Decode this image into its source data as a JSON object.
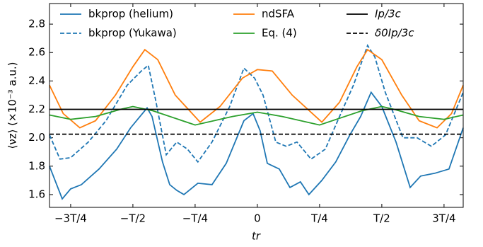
{
  "chart_data": {
    "type": "line",
    "xlabel": "tr",
    "ylabel": "⟨νz⟩ (×10⁻³ a.u.)",
    "xlim": [
      -0.835,
      0.827
    ],
    "ylim": [
      1.51,
      2.945
    ],
    "xticks": [
      {
        "value": -0.75,
        "label": "−3T/4"
      },
      {
        "value": -0.5,
        "label": "−T/2"
      },
      {
        "value": -0.25,
        "label": "−T/4"
      },
      0,
      {
        "value": 0.25,
        "label": "T/4"
      },
      {
        "value": 0.5,
        "label": "T/2"
      },
      {
        "value": 0.75,
        "label": "3T/4"
      }
    ],
    "yticks": [
      1.6,
      1.8,
      {
        "value": 2,
        "label": "2.0"
      },
      2.2,
      2.4,
      2.6,
      2.8
    ],
    "series": [
      {
        "name": "bkprop (helium)",
        "color": "#1f77b4",
        "dash": false,
        "x": [
          -0.835,
          -0.784,
          -0.75,
          -0.707,
          -0.636,
          -0.565,
          -0.509,
          -0.443,
          -0.423,
          -0.381,
          -0.352,
          -0.324,
          -0.295,
          -0.239,
          -0.182,
          -0.125,
          -0.054,
          -0.017,
          0.011,
          0.04,
          0.088,
          0.131,
          0.173,
          0.207,
          0.259,
          0.315,
          0.372,
          0.415,
          0.457,
          0.5,
          0.557,
          0.614,
          0.656,
          0.713,
          0.77,
          0.827
        ],
        "values": [
          1.8,
          1.57,
          1.64,
          1.67,
          1.78,
          1.92,
          2.07,
          2.21,
          2.15,
          1.83,
          1.67,
          1.63,
          1.6,
          1.68,
          1.67,
          1.82,
          2.12,
          2.17,
          2.05,
          1.82,
          1.78,
          1.65,
          1.69,
          1.6,
          1.7,
          1.83,
          2.02,
          2.15,
          2.32,
          2.22,
          1.97,
          1.65,
          1.73,
          1.75,
          1.78,
          2.07
        ]
      },
      {
        "name": "bkprop (Yukawa)",
        "color": "#1f77b4",
        "dash": true,
        "x": [
          -0.835,
          -0.793,
          -0.75,
          -0.679,
          -0.608,
          -0.523,
          -0.466,
          -0.438,
          -0.409,
          -0.366,
          -0.324,
          -0.281,
          -0.239,
          -0.182,
          -0.111,
          -0.054,
          -0.011,
          0.023,
          0.074,
          0.116,
          0.159,
          0.216,
          0.273,
          0.33,
          0.386,
          0.443,
          0.472,
          0.514,
          0.585,
          0.642,
          0.699,
          0.756,
          0.827
        ],
        "values": [
          2.02,
          1.85,
          1.86,
          1.97,
          2.12,
          2.37,
          2.47,
          2.51,
          2.27,
          1.88,
          1.97,
          1.92,
          1.83,
          1.97,
          2.22,
          2.49,
          2.42,
          2.3,
          1.97,
          1.94,
          1.97,
          1.85,
          1.92,
          2.15,
          2.37,
          2.65,
          2.57,
          2.32,
          2.0,
          2.0,
          1.94,
          2.02,
          2.32
        ]
      },
      {
        "name": "ndSFA",
        "color": "#ff7f0e",
        "dash": false,
        "x": [
          -0.835,
          -0.78,
          -0.713,
          -0.65,
          -0.57,
          -0.5,
          -0.452,
          -0.4,
          -0.33,
          -0.23,
          -0.15,
          -0.06,
          0.0,
          0.06,
          0.14,
          0.259,
          0.33,
          0.4,
          0.443,
          0.5,
          0.58,
          0.65,
          0.722,
          0.78,
          0.827
        ],
        "values": [
          2.37,
          2.17,
          2.07,
          2.12,
          2.3,
          2.5,
          2.62,
          2.55,
          2.3,
          2.11,
          2.22,
          2.42,
          2.48,
          2.47,
          2.3,
          2.11,
          2.25,
          2.5,
          2.62,
          2.55,
          2.3,
          2.12,
          2.07,
          2.17,
          2.37
        ]
      },
      {
        "name": "Eq. (4)",
        "color": "#2ca02c",
        "dash": false,
        "x": [
          -0.835,
          -0.75,
          -0.65,
          -0.55,
          -0.5,
          -0.42,
          -0.25,
          -0.1,
          0.0,
          0.1,
          0.25,
          0.42,
          0.5,
          0.55,
          0.65,
          0.75,
          0.827
        ],
        "values": [
          2.16,
          2.13,
          2.15,
          2.2,
          2.22,
          2.19,
          2.09,
          2.15,
          2.18,
          2.15,
          2.09,
          2.19,
          2.22,
          2.2,
          2.15,
          2.13,
          2.16
        ]
      }
    ],
    "hlines": [
      {
        "name": "Ip/3c",
        "color": "#000000",
        "dash": false,
        "value": 2.2
      },
      {
        "name": "δ0Ip/3c",
        "color": "#000000",
        "dash": true,
        "value": 2.025
      }
    ]
  }
}
